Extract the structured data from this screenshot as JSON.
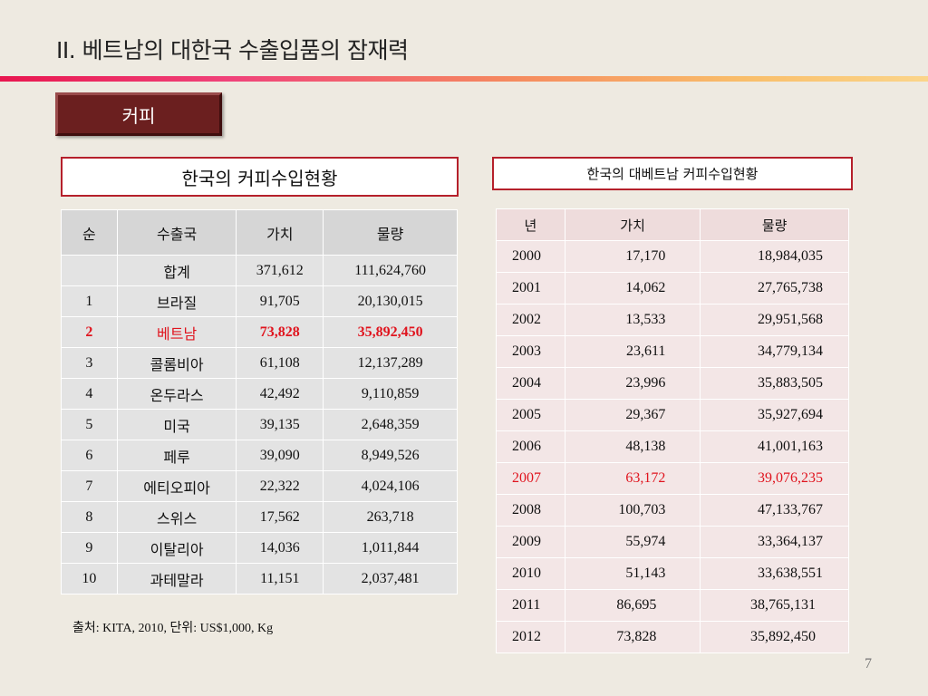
{
  "slide": {
    "title": "II. 베트남의 대한국  수출입품의 잠재력",
    "tag": "커피",
    "page_number": "7",
    "source": "출처: KITA, 2010,  단위: US$1,000, Kg",
    "title_bar_colors": [
      "#e8174f",
      "#f58a5f",
      "#fbd58a"
    ],
    "accent_color": "#b5202b",
    "highlight_color": "#e0141e"
  },
  "left_table": {
    "caption": "한국의 커피수입현황",
    "headers": [
      "순",
      "수출국",
      "가치",
      "물량"
    ],
    "rows": [
      {
        "rank": "",
        "country": "합계",
        "value": "371,612",
        "volume": "111,624,760"
      },
      {
        "rank": "1",
        "country": "브라질",
        "value": "91,705",
        "volume": "20,130,015"
      },
      {
        "rank": "2",
        "country": "베트남",
        "value": "73,828",
        "volume": "35,892,450"
      },
      {
        "rank": "3",
        "country": "콜롬비아",
        "value": "61,108",
        "volume": "12,137,289"
      },
      {
        "rank": "4",
        "country": "온두라스",
        "value": "42,492",
        "volume": "9,110,859"
      },
      {
        "rank": "5",
        "country": "미국",
        "value": "39,135",
        "volume": "2,648,359"
      },
      {
        "rank": "6",
        "country": "페루",
        "value": "39,090",
        "volume": "8,949,526"
      },
      {
        "rank": "7",
        "country": "에티오피아",
        "value": "22,322",
        "volume": "4,024,106"
      },
      {
        "rank": "8",
        "country": "스위스",
        "value": "17,562",
        "volume": "263,718"
      },
      {
        "rank": "9",
        "country": "이탈리아",
        "value": "14,036",
        "volume": "1,011,844"
      },
      {
        "rank": "10",
        "country": "과테말라",
        "value": "11,151",
        "volume": "2,037,481"
      }
    ]
  },
  "right_table": {
    "caption": "한국의 대베트남 커피수입현황",
    "headers": [
      "년",
      "가치",
      "물량"
    ],
    "rows": [
      {
        "year": "2000",
        "value": "17,170",
        "volume": "18,984,035"
      },
      {
        "year": "2001",
        "value": "14,062",
        "volume": "27,765,738"
      },
      {
        "year": "2002",
        "value": "13,533",
        "volume": "29,951,568"
      },
      {
        "year": "2003",
        "value": "23,611",
        "volume": "34,779,134"
      },
      {
        "year": "2004",
        "value": "23,996",
        "volume": "35,883,505"
      },
      {
        "year": "2005",
        "value": "29,367",
        "volume": "35,927,694"
      },
      {
        "year": "2006",
        "value": "48,138",
        "volume": "41,001,163"
      },
      {
        "year": "2007",
        "value": "63,172",
        "volume": "39,076,235"
      },
      {
        "year": "2008",
        "value": "100,703",
        "volume": "47,133,767"
      },
      {
        "year": "2009",
        "value": "55,974",
        "volume": "33,364,137"
      },
      {
        "year": "2010",
        "value": "51,143",
        "volume": "33,638,551"
      },
      {
        "year": "2011",
        "value": "86,695",
        "volume": "38,765,131"
      },
      {
        "year": "2012",
        "value": "73,828",
        "volume": "35,892,450"
      }
    ]
  }
}
